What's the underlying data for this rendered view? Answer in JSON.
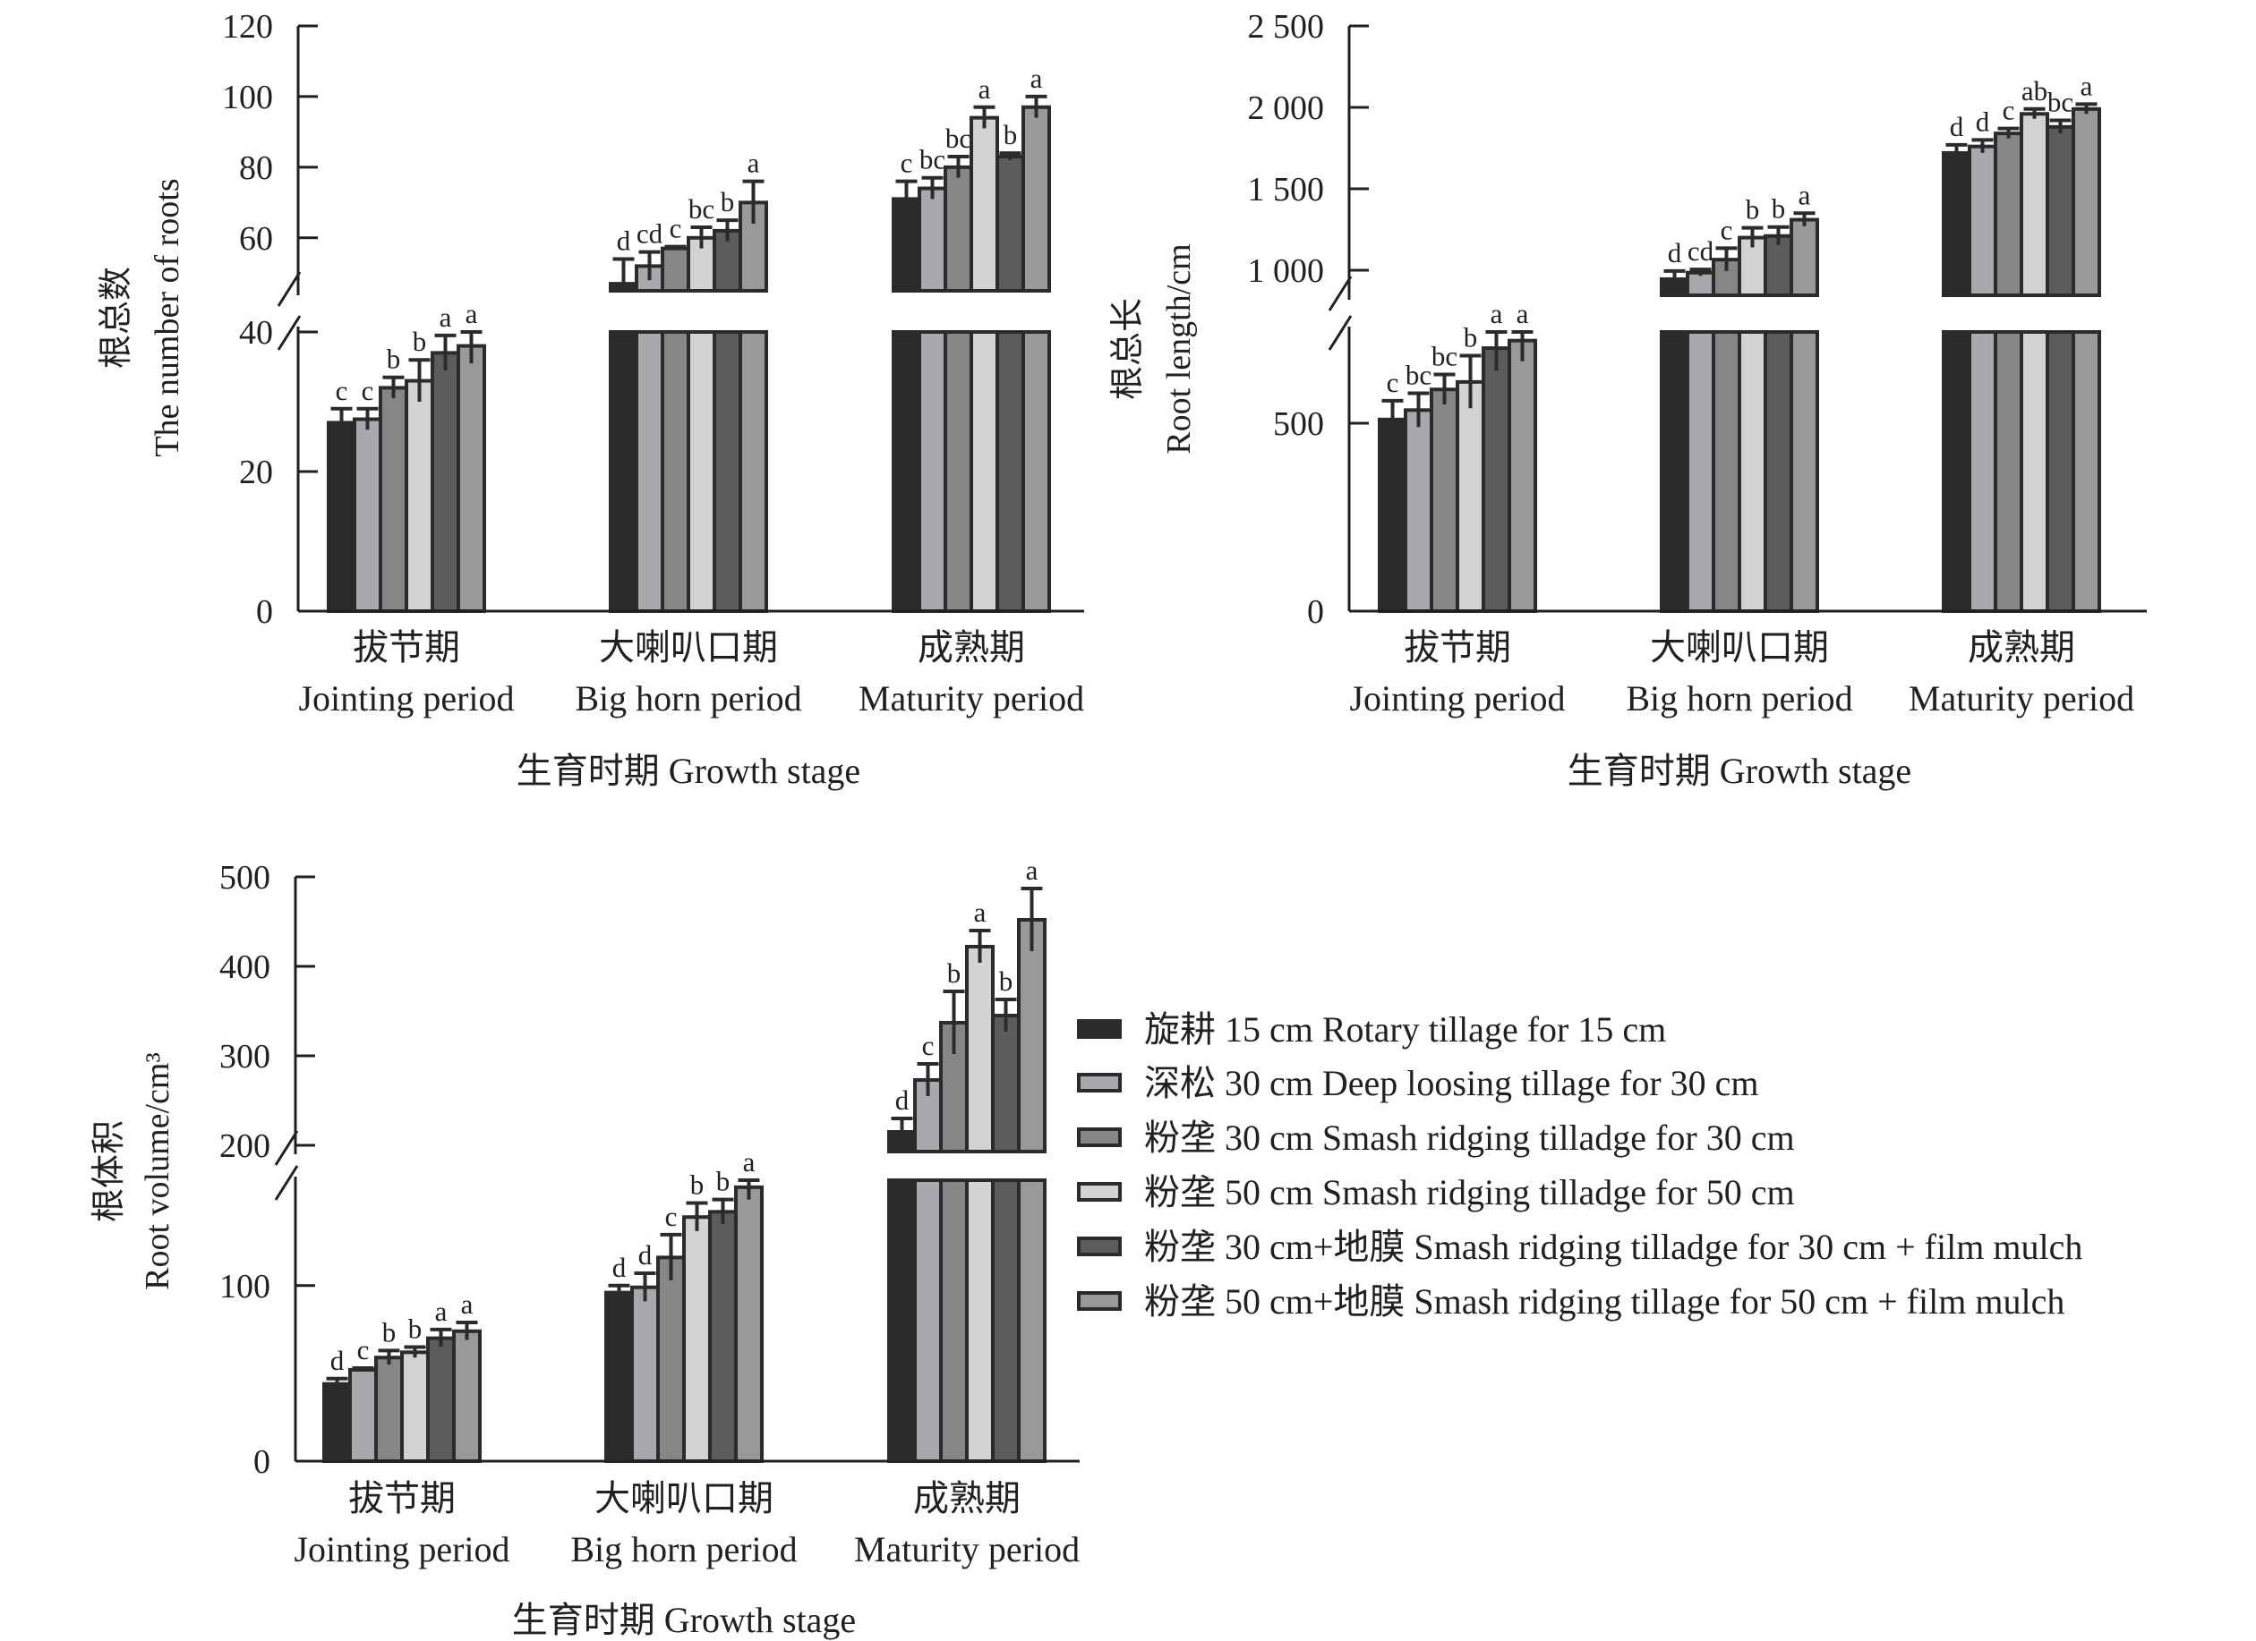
{
  "colors": [
    "#2a2a2c",
    "#a8a9ac",
    "#858688",
    "#d2d3d5",
    "#5b5c5e",
    "#98999b"
  ],
  "legend": [
    "旋耕 15 cm Rotary tillage for 15 cm",
    "深松 30 cm Deep loosing tillage for 30 cm",
    "粉垄 30 cm Smash ridging tilladge for 30 cm",
    "粉垄 50 cm Smash ridging tilladge for 50 cm",
    "粉垄 30 cm+地膜 Smash ridging tilladge for 30 cm + film mulch",
    "粉垄 50 cm+地膜 Smash ridging tillage for 50 cm + film mulch"
  ],
  "chart_data": [
    {
      "type": "bar",
      "ylabel_cn": "根总数",
      "ylabel": "The number of roots",
      "xlabel": "生育时期 Growth stage",
      "categories_cn": [
        "拔节期",
        "大喇叭口期",
        "成熟期"
      ],
      "categories": [
        "Jointing period",
        "Big horn period",
        "Maturity period"
      ],
      "axis_break": {
        "lower": [
          0,
          40
        ],
        "upper": [
          45,
          120
        ]
      },
      "yticks_lower": [
        "0",
        "20",
        "40"
      ],
      "yticks_upper": [
        "60",
        "80",
        "100",
        "120"
      ],
      "ytick_values_lower": [
        0,
        20,
        40
      ],
      "ytick_values_upper": [
        60,
        80,
        100,
        120
      ],
      "values": [
        [
          27,
          27.5,
          32,
          33,
          37,
          38
        ],
        [
          47,
          52,
          57,
          60,
          62,
          70
        ],
        [
          71,
          74,
          80,
          94,
          83,
          97
        ]
      ],
      "errors": [
        [
          2,
          1.5,
          1.5,
          3,
          2.5,
          2.5
        ],
        [
          7,
          4,
          0.5,
          3,
          3,
          6
        ],
        [
          5,
          3,
          3,
          3,
          1,
          3
        ]
      ],
      "letters": [
        [
          "c",
          "c",
          "b",
          "b",
          "a",
          "a"
        ],
        [
          "d",
          "cd",
          "c",
          "bc",
          "b",
          "a"
        ],
        [
          "c",
          "bc",
          "bc",
          "a",
          "b",
          "a"
        ]
      ]
    },
    {
      "type": "bar",
      "ylabel_cn": "根总长",
      "ylabel": "Root length/cm",
      "xlabel": "生育时期 Growth stage",
      "categories_cn": [
        "拔节期",
        "大喇叭口期",
        "成熟期"
      ],
      "categories": [
        "Jointing period",
        "Big horn period",
        "Maturity period"
      ],
      "axis_break": {
        "lower": [
          0,
          743
        ],
        "upper": [
          846,
          2500
        ]
      },
      "yticks_lower": [
        "0",
        "500"
      ],
      "yticks_upper": [
        "1 000",
        "1 500",
        "2 000",
        "2 500"
      ],
      "ytick_values_lower": [
        0,
        500
      ],
      "ytick_values_upper": [
        1000,
        1500,
        2000,
        2500
      ],
      "values": [
        [
          510,
          535,
          590,
          610,
          700,
          720
        ],
        [
          945,
          985,
          1065,
          1200,
          1210,
          1310
        ],
        [
          1720,
          1760,
          1840,
          1960,
          1880,
          1990
        ]
      ],
      "errors": [
        [
          50,
          45,
          40,
          70,
          60,
          55
        ],
        [
          50,
          20,
          70,
          60,
          55,
          40
        ],
        [
          50,
          40,
          30,
          30,
          40,
          30
        ]
      ],
      "letters": [
        [
          "c",
          "bc",
          "bc",
          "b",
          "a",
          "a"
        ],
        [
          "d",
          "cd",
          "c",
          "b",
          "b",
          "a"
        ],
        [
          "d",
          "d",
          "c",
          "ab",
          "bc",
          "a"
        ]
      ]
    },
    {
      "type": "bar",
      "ylabel_cn": "根体积",
      "ylabel": "Root volume/cm³",
      "xlabel": "生育时期 Growth stage",
      "categories_cn": [
        "拔节期",
        "大喇叭口期",
        "成熟期"
      ],
      "categories": [
        "Jointing period",
        "Big horn period",
        "Maturity period"
      ],
      "axis_break": {
        "lower": [
          0,
          160
        ],
        "upper": [
          193,
          500
        ]
      },
      "yticks_lower": [
        "0",
        "100"
      ],
      "yticks_upper": [
        "200",
        "300",
        "400",
        "500"
      ],
      "ytick_values_lower": [
        0,
        100
      ],
      "ytick_values_upper": [
        200,
        300,
        400,
        500
      ],
      "values": [
        [
          44,
          52,
          59,
          62,
          70,
          74
        ],
        [
          96,
          99,
          116,
          139,
          142,
          156
        ],
        [
          215,
          273,
          337,
          422,
          345,
          452
        ]
      ],
      "errors": [
        [
          3,
          1,
          4,
          3,
          5,
          5
        ],
        [
          4,
          8,
          13,
          8,
          7,
          7
        ],
        [
          15,
          18,
          35,
          18,
          18,
          35
        ]
      ],
      "letters": [
        [
          "d",
          "c",
          "b",
          "b",
          "a",
          "a"
        ],
        [
          "d",
          "d",
          "c",
          "b",
          "b",
          "a"
        ],
        [
          "d",
          "c",
          "b",
          "a",
          "b",
          "a"
        ]
      ]
    }
  ]
}
